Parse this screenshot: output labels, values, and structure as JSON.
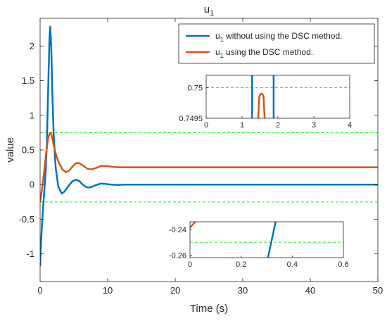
{
  "chart_data": {
    "type": "line",
    "title": "u",
    "title_sub": "1",
    "xlabel": "Time (s)",
    "ylabel": "value",
    "xlim": [
      0,
      50
    ],
    "ylim": [
      -1.4,
      2.4
    ],
    "xticks": [
      0,
      10,
      20,
      30,
      40,
      50
    ],
    "xtick_labels": [
      "0",
      "10",
      "20",
      "30",
      "40",
      "50"
    ],
    "yticks": [
      -1,
      -0.5,
      0,
      0.5,
      1,
      1.5,
      2
    ],
    "ytick_labels": [
      "-1",
      "-0.5",
      "0",
      "0.5",
      "1",
      "1.5",
      "2"
    ],
    "grid": false,
    "legend_position": "top-right",
    "threshold_color": "#00ff00",
    "thresholds": [
      0.75,
      -0.25
    ],
    "series": [
      {
        "name_main": "u",
        "name_sub": "1",
        "name_rest": " without using the DSC method.",
        "color": "#0072BD",
        "x": [
          0,
          0.1,
          0.3,
          0.5,
          0.8,
          1.0,
          1.2,
          1.4,
          1.5,
          1.65,
          1.8,
          2.0,
          2.3,
          2.7,
          3.2,
          3.6,
          4.2,
          4.8,
          5.3,
          5.8,
          6.3,
          6.9,
          7.5,
          8.2,
          9.0,
          9.7,
          10.5,
          11.5,
          12.5,
          14,
          16,
          20,
          30,
          40,
          50
        ],
        "y": [
          -1.18,
          -0.9,
          -0.55,
          -0.25,
          0.15,
          0.6,
          1.4,
          2.15,
          2.28,
          2.0,
          1.35,
          0.75,
          0.25,
          -0.03,
          -0.13,
          -0.1,
          -0.02,
          0.05,
          0.07,
          0.05,
          0.0,
          -0.04,
          -0.04,
          -0.01,
          0.015,
          0.01,
          0.0,
          -0.005,
          0.0,
          0.0,
          0.0,
          0.0,
          0.0,
          0.0,
          0.0
        ]
      },
      {
        "name_main": "u",
        "name_sub": "1",
        "name_rest": " using the DSC method.",
        "color": "#D95319",
        "x": [
          0,
          0.3,
          0.6,
          0.9,
          1.2,
          1.5,
          1.7,
          2.0,
          2.4,
          2.8,
          3.3,
          3.8,
          4.3,
          4.8,
          5.3,
          5.8,
          6.4,
          7.0,
          7.6,
          8.3,
          9.0,
          9.7,
          10.5,
          11.5,
          12.5,
          14,
          16,
          20,
          30,
          40,
          50
        ],
        "y": [
          -0.25,
          -0.05,
          0.2,
          0.45,
          0.68,
          0.75,
          0.72,
          0.57,
          0.42,
          0.31,
          0.22,
          0.18,
          0.2,
          0.26,
          0.31,
          0.31,
          0.27,
          0.23,
          0.22,
          0.24,
          0.27,
          0.27,
          0.26,
          0.25,
          0.25,
          0.25,
          0.25,
          0.25,
          0.25,
          0.25,
          0.25
        ]
      }
    ],
    "insets": [
      {
        "xlim": [
          0,
          4
        ],
        "ylim": [
          0.7495,
          0.7502
        ],
        "xticks": [
          0,
          1,
          2,
          3,
          4
        ],
        "xtick_labels": [
          "0",
          "1",
          "2",
          "3",
          "4"
        ],
        "yticks": [
          0.7495,
          0.75
        ],
        "ytick_labels": [
          "0.7495",
          "0.75"
        ],
        "threshold": 0.75,
        "series": [
          {
            "color": "#0072BD",
            "segments": [
              {
                "x": [
                  1.28,
                  1.28
                ],
                "y": [
                  0.7495,
                  0.7502
                ]
              },
              {
                "x": [
                  1.88,
                  1.88
                ],
                "y": [
                  0.7495,
                  0.7502
                ]
              }
            ]
          },
          {
            "color": "#D95319",
            "segments": [
              {
                "x": [
                  1.45,
                  1.48,
                  1.52,
                  1.56,
                  1.6,
                  1.63
                ],
                "y": [
                  0.7495,
                  0.74985,
                  0.7499,
                  0.7499,
                  0.74985,
                  0.7495
                ]
              }
            ]
          }
        ]
      },
      {
        "xlim": [
          0,
          0.6
        ],
        "ylim": [
          -0.262,
          -0.234
        ],
        "xticks": [
          0,
          0.2,
          0.4,
          0.6
        ],
        "xtick_labels": [
          "0",
          "0.2",
          "0.4",
          "0.6"
        ],
        "yticks": [
          -0.26,
          -0.24
        ],
        "ytick_labels": [
          "-0.26",
          "-0.24"
        ],
        "threshold": -0.25,
        "series": [
          {
            "color": "#0072BD",
            "segments": [
              {
                "x": [
                  0.305,
                  0.335
                ],
                "y": [
                  -0.262,
                  -0.234
                ]
              }
            ]
          },
          {
            "color": "#D95319",
            "segments": [
              {
                "x": [
                  0.0,
                  0.01,
                  0.02
                ],
                "y": [
                  -0.2385,
                  -0.2365,
                  -0.234
                ]
              }
            ]
          }
        ]
      }
    ]
  }
}
